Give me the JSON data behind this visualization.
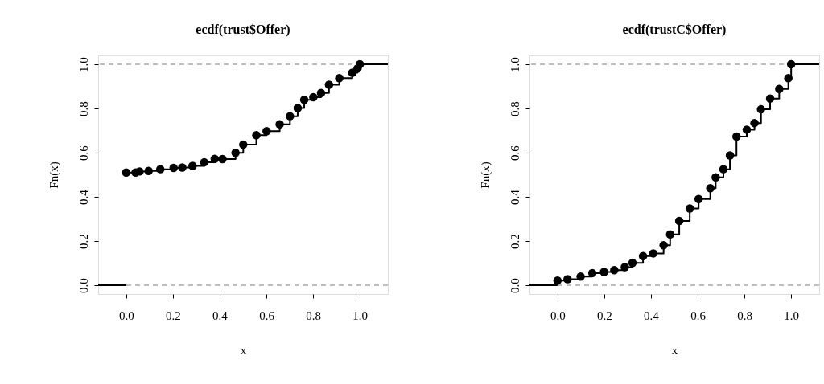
{
  "chart_data": [
    {
      "type": "step",
      "title": "ecdf(trust$Offer)",
      "xlabel": "x",
      "ylabel": "Fn(x)",
      "xlim": [
        -0.12,
        1.12
      ],
      "ylim": [
        -0.04,
        1.04
      ],
      "xticks": [
        {
          "value": 0,
          "label": "0.0"
        },
        {
          "value": 0.2,
          "label": "0.2"
        },
        {
          "value": 0.4,
          "label": "0.4"
        },
        {
          "value": 0.6,
          "label": "0.6"
        },
        {
          "value": 0.8,
          "label": "0.8"
        },
        {
          "value": 1,
          "label": "1.0"
        }
      ],
      "yticks": [
        {
          "value": 0,
          "label": "0.0"
        },
        {
          "value": 0.2,
          "label": "0.2"
        },
        {
          "value": 0.4,
          "label": "0.4"
        },
        {
          "value": 0.6,
          "label": "0.6"
        },
        {
          "value": 0.8,
          "label": "0.8"
        },
        {
          "value": 1,
          "label": "1.0"
        }
      ],
      "grid": false,
      "marker": "circle",
      "ref_lines": [
        {
          "axis": "y",
          "value": 0,
          "color": "#bebebe",
          "line_style": "dashed"
        },
        {
          "axis": "y",
          "value": 1,
          "color": "#bebebe",
          "line_style": "dashed"
        }
      ],
      "series": [
        {
          "color": "#000000",
          "x": [
            0.0,
            0.04,
            0.057,
            0.096,
            0.146,
            0.203,
            0.24,
            0.284,
            0.334,
            0.379,
            0.412,
            0.468,
            0.501,
            0.557,
            0.601,
            0.657,
            0.701,
            0.734,
            0.762,
            0.801,
            0.834,
            0.868,
            0.912,
            0.968,
            0.99,
            1.0
          ],
          "values": [
            0.51,
            0.51,
            0.515,
            0.517,
            0.525,
            0.531,
            0.533,
            0.54,
            0.556,
            0.572,
            0.571,
            0.599,
            0.636,
            0.679,
            0.697,
            0.728,
            0.765,
            0.802,
            0.839,
            0.851,
            0.87,
            0.907,
            0.937,
            0.962,
            0.981,
            1.0
          ]
        },
        {
          "color": "#000000",
          "type": "line",
          "marker": "none",
          "x": [
            -0.12,
            0.0
          ],
          "values": [
            0,
            0
          ]
        },
        {
          "color": "#000000",
          "type": "line",
          "marker": "none",
          "x": [
            1.0,
            1.12
          ],
          "values": [
            1,
            1
          ]
        }
      ]
    },
    {
      "type": "step",
      "title": "ecdf(trustC$Offer)",
      "xlabel": "x",
      "ylabel": "Fn(x)",
      "xlim": [
        -0.12,
        1.12
      ],
      "ylim": [
        -0.04,
        1.04
      ],
      "xticks": [
        {
          "value": 0,
          "label": "0.0"
        },
        {
          "value": 0.2,
          "label": "0.2"
        },
        {
          "value": 0.4,
          "label": "0.4"
        },
        {
          "value": 0.6,
          "label": "0.6"
        },
        {
          "value": 0.8,
          "label": "0.8"
        },
        {
          "value": 1,
          "label": "1.0"
        }
      ],
      "yticks": [
        {
          "value": 0,
          "label": "0.0"
        },
        {
          "value": 0.2,
          "label": "0.2"
        },
        {
          "value": 0.4,
          "label": "0.4"
        },
        {
          "value": 0.6,
          "label": "0.6"
        },
        {
          "value": 0.8,
          "label": "0.8"
        },
        {
          "value": 1,
          "label": "1.0"
        }
      ],
      "grid": false,
      "marker": "circle",
      "ref_lines": [
        {
          "axis": "y",
          "value": 0,
          "color": "#bebebe",
          "line_style": "dashed"
        },
        {
          "axis": "y",
          "value": 1,
          "color": "#bebebe",
          "line_style": "dashed"
        }
      ],
      "series": [
        {
          "color": "#000000",
          "x": [
            0.0,
            0.043,
            0.099,
            0.149,
            0.199,
            0.243,
            0.288,
            0.321,
            0.366,
            0.41,
            0.454,
            0.482,
            0.521,
            0.566,
            0.604,
            0.654,
            0.677,
            0.71,
            0.738,
            0.766,
            0.81,
            0.843,
            0.871,
            0.91,
            0.949,
            0.988,
            1.0
          ],
          "values": [
            0.021,
            0.027,
            0.039,
            0.055,
            0.06,
            0.068,
            0.082,
            0.101,
            0.132,
            0.144,
            0.181,
            0.23,
            0.291,
            0.347,
            0.39,
            0.439,
            0.488,
            0.525,
            0.587,
            0.673,
            0.704,
            0.734,
            0.796,
            0.845,
            0.888,
            0.937,
            1.0
          ]
        },
        {
          "color": "#000000",
          "type": "line",
          "marker": "none",
          "x": [
            -0.12,
            0.0
          ],
          "values": [
            0,
            0
          ]
        },
        {
          "color": "#000000",
          "type": "line",
          "marker": "none",
          "x": [
            1.0,
            1.12
          ],
          "values": [
            1,
            1
          ]
        }
      ]
    }
  ]
}
